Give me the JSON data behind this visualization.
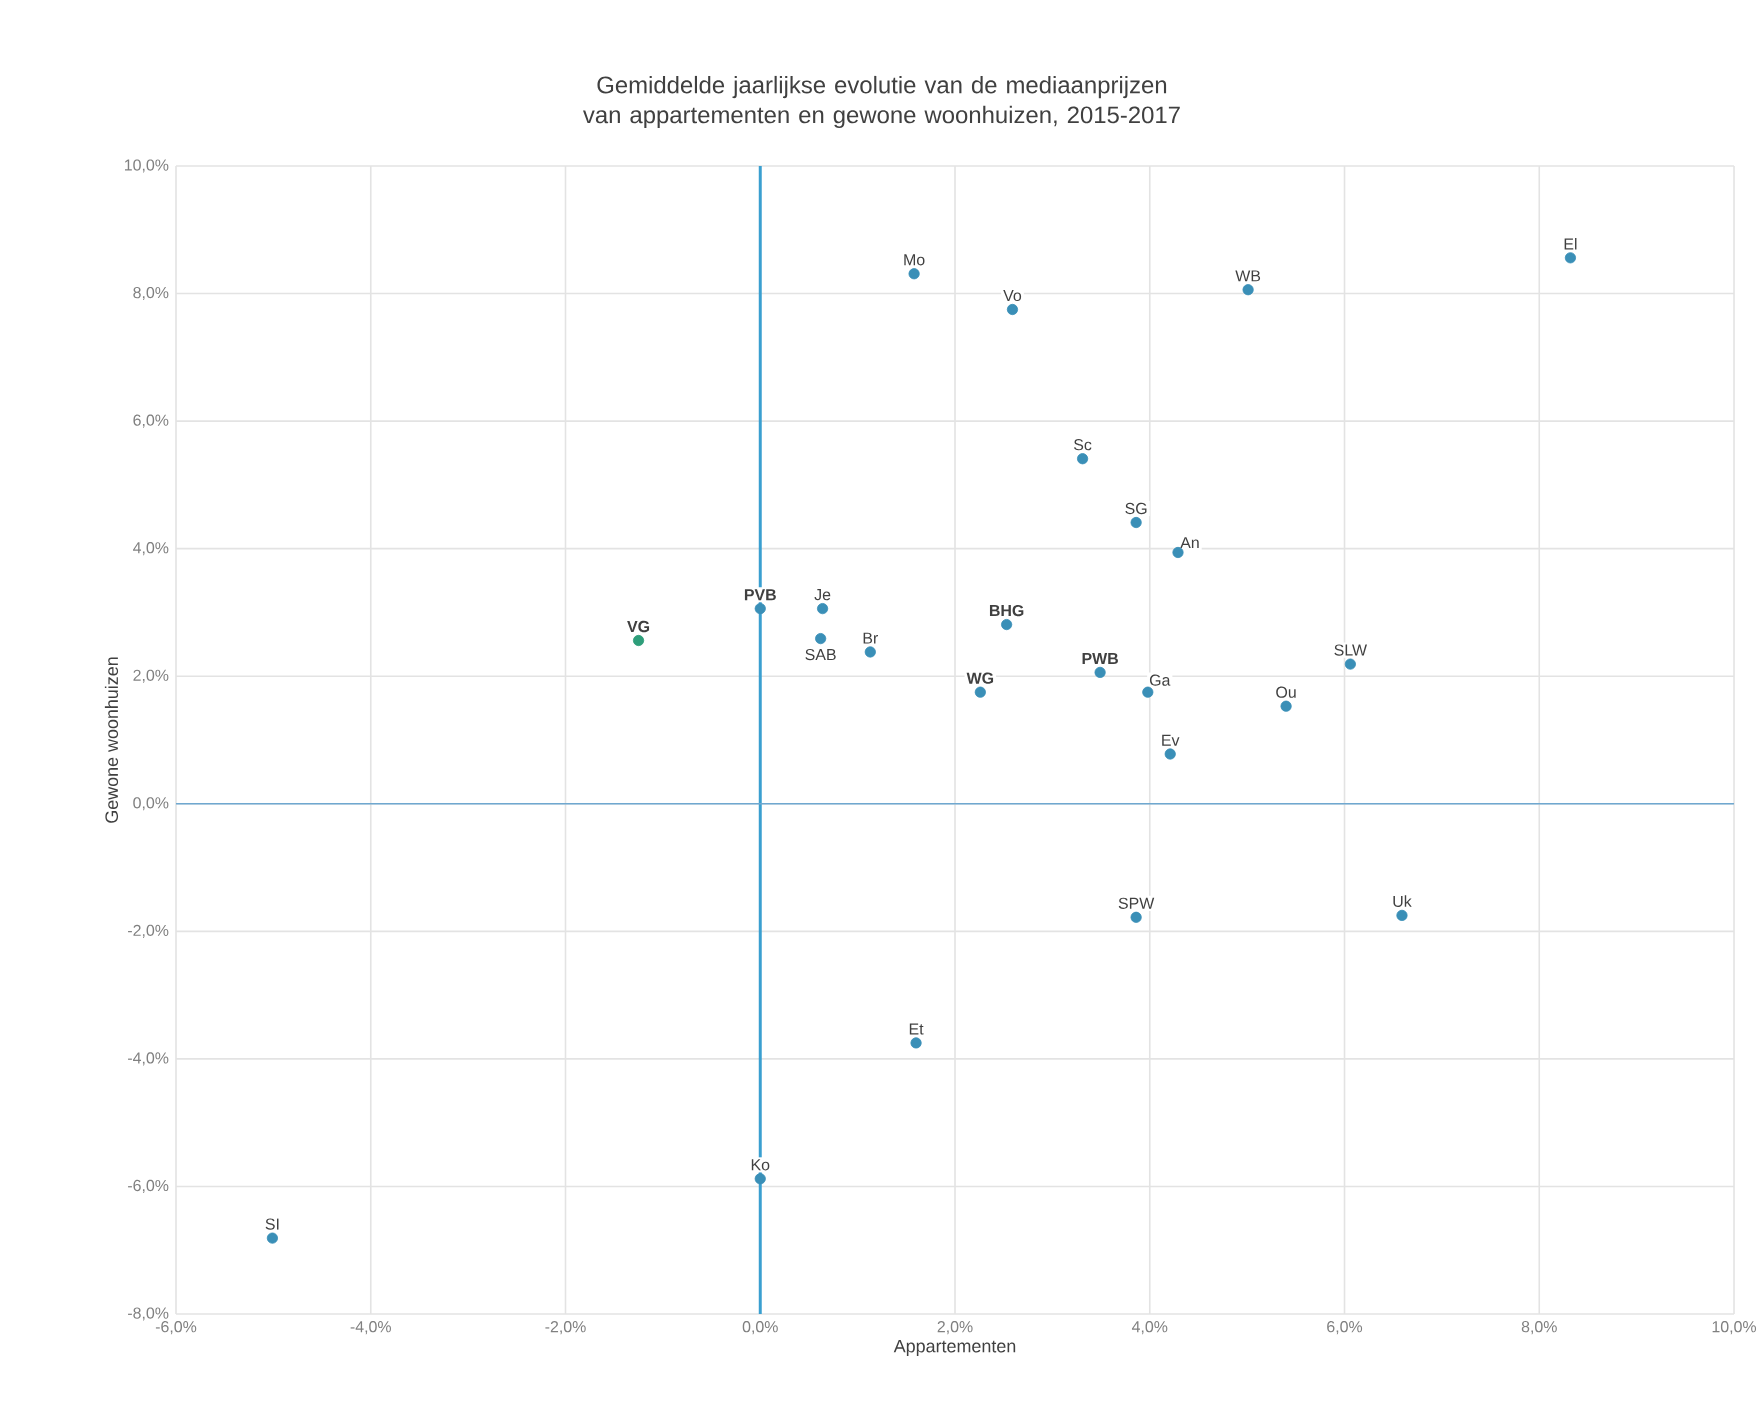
{
  "chart_data": {
    "type": "scatter",
    "title": "Gemiddelde jaarlijkse evolutie van de mediaanprijzen van appartementen en gewone woonhuizen, 2015-2017",
    "xlabel": "Appartementen",
    "ylabel": "Gewone woonhuizen",
    "x": [
      1.58,
      2.59,
      5.01,
      8.32,
      3.31,
      3.86,
      4.29,
      -1.25,
      0,
      0.64,
      0.62,
      1.13,
      2.53,
      2.26,
      3.49,
      3.98,
      4.21,
      5.4,
      6.06,
      3.86,
      6.59,
      1.6,
      0,
      -5.01
    ],
    "values": [
      8.31,
      7.75,
      8.06,
      8.56,
      5.41,
      4.41,
      3.94,
      2.56,
      3.06,
      3.06,
      2.59,
      2.38,
      2.81,
      1.75,
      2.06,
      1.75,
      0.78,
      1.53,
      2.19,
      -1.78,
      -1.75,
      -3.75,
      -5.88,
      -6.81
    ],
    "colors": [
      "#3a8fb7",
      "#3a8fb7",
      "#3a8fb7",
      "#3a8fb7",
      "#3a8fb7",
      "#3a8fb7",
      "#3a8fb7",
      "#2e9e7a",
      "#3a8fb7",
      "#3a8fb7",
      "#3a8fb7",
      "#3a8fb7",
      "#3a8fb7",
      "#3a8fb7",
      "#3a8fb7",
      "#3a8fb7",
      "#3a8fb7",
      "#3a8fb7",
      "#3a8fb7",
      "#3a8fb7",
      "#3a8fb7",
      "#3a8fb7",
      "#3a8fb7",
      "#3a8fb7"
    ],
    "xlim": [
      -6,
      10
    ],
    "ylim": [
      -8,
      10
    ],
    "xticks": [
      {
        "value": -6,
        "label": "-6,0%"
      },
      {
        "value": -4,
        "label": "-4,0%"
      },
      {
        "value": -2,
        "label": "-2,0%"
      },
      {
        "value": 0,
        "label": "0,0%"
      },
      {
        "value": 2,
        "label": "2,0%"
      },
      {
        "value": 4,
        "label": "4,0%"
      },
      {
        "value": 6,
        "label": "6,0%"
      },
      {
        "value": 8,
        "label": "8,0%"
      },
      {
        "value": 10,
        "label": "10,0%"
      }
    ],
    "yticks": [
      {
        "value": -8,
        "label": "-8,0%"
      },
      {
        "value": -6,
        "label": "-6,0%"
      },
      {
        "value": -4,
        "label": "-4,0%"
      },
      {
        "value": -2,
        "label": "-2,0%"
      },
      {
        "value": 0,
        "label": "0,0%"
      },
      {
        "value": 2,
        "label": "2,0%"
      },
      {
        "value": 4,
        "label": "4,0%"
      },
      {
        "value": 6,
        "label": "6,0%"
      },
      {
        "value": 8,
        "label": "8,0%"
      },
      {
        "value": 10,
        "label": "10,0%"
      }
    ],
    "grid": true,
    "ref_lines": [
      {
        "axis": "x",
        "value": 0,
        "color": "#3a9fd0"
      },
      {
        "axis": "y",
        "value": 0,
        "color": "#6fa8d0"
      }
    ],
    "annotations": [
      {
        "text": "Mo",
        "x": 1.58,
        "y": 8.31
      },
      {
        "text": "Vo",
        "x": 2.59,
        "y": 7.75
      },
      {
        "text": "WB",
        "x": 5.01,
        "y": 8.06
      },
      {
        "text": "El",
        "x": 8.32,
        "y": 8.56
      },
      {
        "text": "Sc",
        "x": 3.31,
        "y": 5.41
      },
      {
        "text": "SG",
        "x": 3.86,
        "y": 4.41
      },
      {
        "text": "An",
        "x": 4.29,
        "y": 3.94
      },
      {
        "text": "**VG**",
        "x": -1.25,
        "y": 2.56
      },
      {
        "text": "**PVB**",
        "x": 0,
        "y": 3.06
      },
      {
        "text": "Je",
        "x": 0.64,
        "y": 3.06
      },
      {
        "text": "SAB",
        "x": 0.62,
        "y": 2.59
      },
      {
        "text": "Br",
        "x": 1.13,
        "y": 2.38
      },
      {
        "text": "**BHG**",
        "x": 2.53,
        "y": 2.81
      },
      {
        "text": "**WG**",
        "x": 2.26,
        "y": 1.75
      },
      {
        "text": "**PWB**",
        "x": 3.49,
        "y": 2.06
      },
      {
        "text": "Ga",
        "x": 3.98,
        "y": 1.75
      },
      {
        "text": "Ev",
        "x": 4.21,
        "y": 0.78
      },
      {
        "text": "Ou",
        "x": 5.4,
        "y": 1.53
      },
      {
        "text": "SLW",
        "x": 6.06,
        "y": 2.19
      },
      {
        "text": "SPW",
        "x": 3.86,
        "y": -1.78
      },
      {
        "text": "Uk",
        "x": 6.59,
        "y": -1.75
      },
      {
        "text": "Et",
        "x": 1.6,
        "y": -3.75
      },
      {
        "text": "Ko",
        "x": 0,
        "y": -5.88
      },
      {
        "text": "SI",
        "x": -5.01,
        "y": -6.81
      }
    ]
  }
}
